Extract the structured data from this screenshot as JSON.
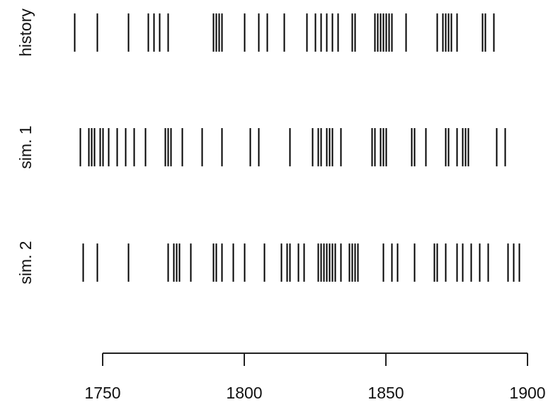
{
  "chart_data": {
    "type": "strip",
    "xlim": [
      1740,
      1900
    ],
    "series": [
      {
        "name": "history",
        "values": [
          1740,
          1748,
          1759,
          1766,
          1768,
          1770,
          1773,
          1789,
          1790,
          1791,
          1792,
          1800,
          1805,
          1808,
          1814,
          1822,
          1825,
          1827,
          1829,
          1831,
          1833,
          1838,
          1839,
          1846,
          1847,
          1848,
          1849,
          1850,
          1851,
          1852,
          1857,
          1868,
          1870,
          1871,
          1872,
          1873,
          1875,
          1884,
          1885,
          1888
        ]
      },
      {
        "name": "sim. 1",
        "values": [
          1742,
          1745,
          1746,
          1747,
          1749,
          1750,
          1752,
          1755,
          1758,
          1761,
          1765,
          1772,
          1773,
          1774,
          1778,
          1785,
          1792,
          1802,
          1805,
          1816,
          1824,
          1826,
          1827,
          1829,
          1830,
          1831,
          1834,
          1845,
          1846,
          1848,
          1849,
          1850,
          1859,
          1860,
          1864,
          1871,
          1872,
          1875,
          1877,
          1878,
          1879,
          1889,
          1892
        ]
      },
      {
        "name": "sim. 2",
        "values": [
          1743,
          1748,
          1759,
          1773,
          1775,
          1776,
          1777,
          1781,
          1789,
          1790,
          1792,
          1796,
          1800,
          1807,
          1813,
          1815,
          1816,
          1819,
          1821,
          1826,
          1827,
          1828,
          1829,
          1830,
          1831,
          1832,
          1834,
          1837,
          1838,
          1839,
          1840,
          1849,
          1852,
          1854,
          1860,
          1867,
          1868,
          1871,
          1875,
          1877,
          1880,
          1883,
          1886,
          1893,
          1895,
          1897
        ]
      }
    ],
    "x_ticks": [
      1750,
      1800,
      1850,
      1900
    ],
    "x_tick_labels": [
      "1750",
      "1800",
      "1850",
      "1900"
    ],
    "grid": false,
    "legend": "none"
  }
}
